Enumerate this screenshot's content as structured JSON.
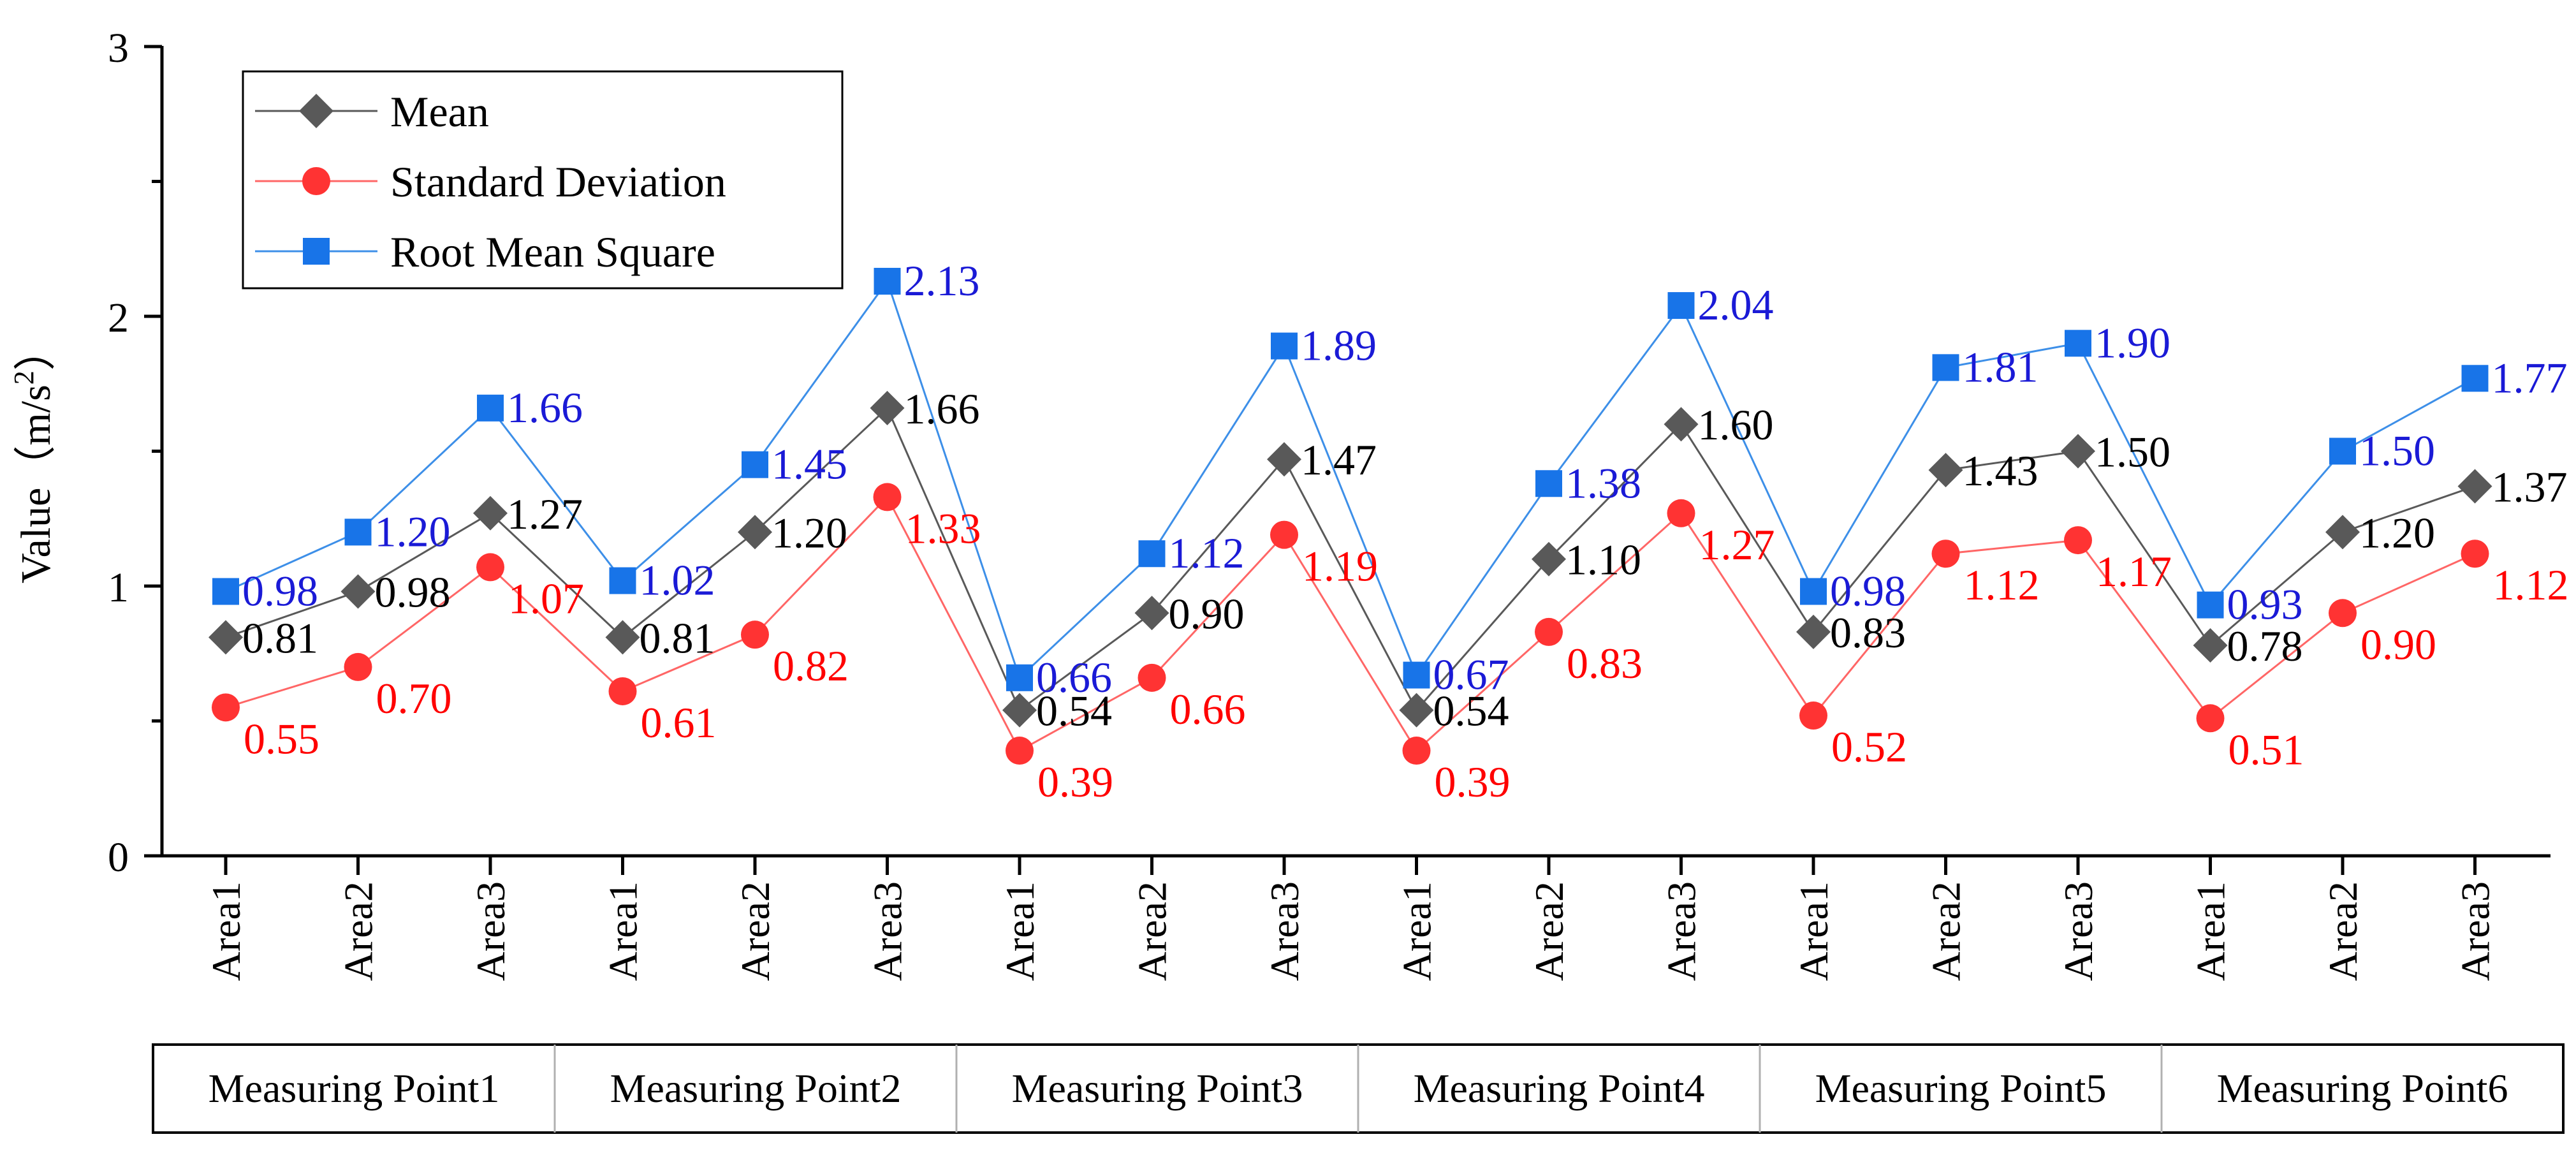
{
  "chart_data": {
    "type": "line",
    "title": "",
    "xlabel": "",
    "ylabel": {
      "prefix": "Value（m/s",
      "sup": "2",
      "suffix": "）"
    },
    "ylim": [
      0,
      3
    ],
    "yticks": [
      "0",
      "1",
      "2",
      "3"
    ],
    "categories": [
      "Area1",
      "Area2",
      "Area3",
      "Area1",
      "Area2",
      "Area3",
      "Area1",
      "Area2",
      "Area3",
      "Area1",
      "Area2",
      "Area3",
      "Area1",
      "Area2",
      "Area3",
      "Area1",
      "Area2",
      "Area3"
    ],
    "groups": [
      "Measuring Point1",
      "Measuring Point2",
      "Measuring Point3",
      "Measuring Point4",
      "Measuring Point5",
      "Measuring Point6"
    ],
    "legend_position": "top-left",
    "series": [
      {
        "name": "Mean",
        "marker": "diamond",
        "color": "#595959",
        "line_color": "#595959",
        "label_color": "#000000",
        "values": [
          0.81,
          0.98,
          1.27,
          0.81,
          1.2,
          1.66,
          0.54,
          0.9,
          1.47,
          0.54,
          1.1,
          1.6,
          0.83,
          1.43,
          1.5,
          0.78,
          1.2,
          1.37
        ],
        "labels": [
          "0.81",
          "0.98",
          "1.27",
          "0.81",
          "1.20",
          "1.66",
          "0.54",
          "0.90",
          "1.47",
          "0.54",
          "1.10",
          "1.60",
          "0.83",
          "1.43",
          "1.50",
          "0.78",
          "1.20",
          "1.37"
        ]
      },
      {
        "name": "Standard Deviation",
        "marker": "circle",
        "color": "#ff3333",
        "line_color": "#ff6666",
        "label_color": "#ff0000",
        "values": [
          0.55,
          0.7,
          1.07,
          0.61,
          0.82,
          1.33,
          0.39,
          0.66,
          1.19,
          0.39,
          0.83,
          1.27,
          0.52,
          1.12,
          1.17,
          0.51,
          0.9,
          1.12
        ],
        "labels": [
          "0.55",
          "0.70",
          "1.07",
          "0.61",
          "0.82",
          "1.33",
          "0.39",
          "0.66",
          "1.19",
          "0.39",
          "0.83",
          "1.27",
          "0.52",
          "1.12",
          "1.17",
          "0.51",
          "0.90",
          "1.12"
        ]
      },
      {
        "name": "Root Mean Square",
        "marker": "square",
        "color": "#1874e8",
        "line_color": "#3d8fe8",
        "label_color": "#1a1ad6",
        "values": [
          0.98,
          1.2,
          1.66,
          1.02,
          1.45,
          2.13,
          0.66,
          1.12,
          1.89,
          0.67,
          1.38,
          2.04,
          0.98,
          1.81,
          1.9,
          0.93,
          1.5,
          1.77
        ],
        "labels": [
          "0.98",
          "1.20",
          "1.66",
          "1.02",
          "1.45",
          "2.13",
          "0.66",
          "1.12",
          "1.89",
          "0.67",
          "1.38",
          "2.04",
          "0.98",
          "1.81",
          "1.90",
          "0.93",
          "1.50",
          "1.77"
        ]
      }
    ]
  }
}
